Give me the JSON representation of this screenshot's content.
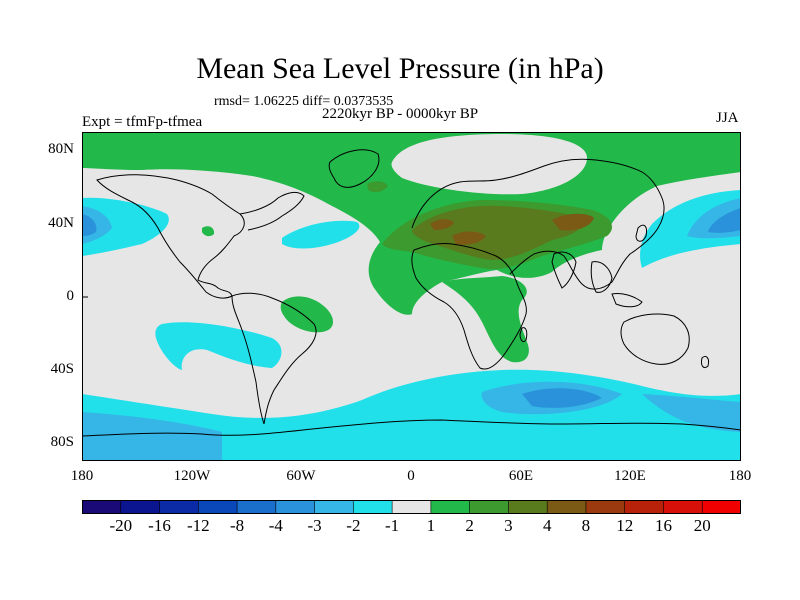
{
  "title": "Mean Sea Level Pressure (in hPa)",
  "stats": "rmsd= 1.06225 diff= 0.0373535",
  "period": "2220kyr BP - 0000kyr BP",
  "experiment": "Expt = tfmFp-tfmea",
  "season": "JJA",
  "axes": {
    "y_ticks": [
      "80N",
      "40N",
      "0",
      "40S",
      "80S"
    ],
    "x_ticks": [
      "180",
      "120W",
      "60W",
      "0",
      "60E",
      "120E",
      "180"
    ]
  },
  "colorbar": {
    "labels": [
      "-20",
      "-16",
      "-12",
      "-8",
      "-4",
      "-3",
      "-2",
      "-1",
      "1",
      "2",
      "3",
      "4",
      "8",
      "12",
      "16",
      "20"
    ],
    "colors": [
      "#1a0a78",
      "#0b1590",
      "#0a2aa6",
      "#0a47b8",
      "#1a6fcc",
      "#2a92da",
      "#35b6e6",
      "#22e0ea",
      "#e6e6e6",
      "#22b84a",
      "#3c9a2e",
      "#5a7a1e",
      "#7a5a14",
      "#9a3a0e",
      "#b8220a",
      "#d8100a",
      "#f00000"
    ]
  },
  "colors": {
    "neutral": "#e6e6e6",
    "pos1": "#22b84a",
    "pos2": "#3c9a2e",
    "pos3": "#5a7a1e",
    "pos4": "#7a5a14",
    "neg1": "#22e0ea",
    "neg2": "#35b6e6",
    "neg3": "#2a92da",
    "neg4": "#1a6fcc"
  }
}
